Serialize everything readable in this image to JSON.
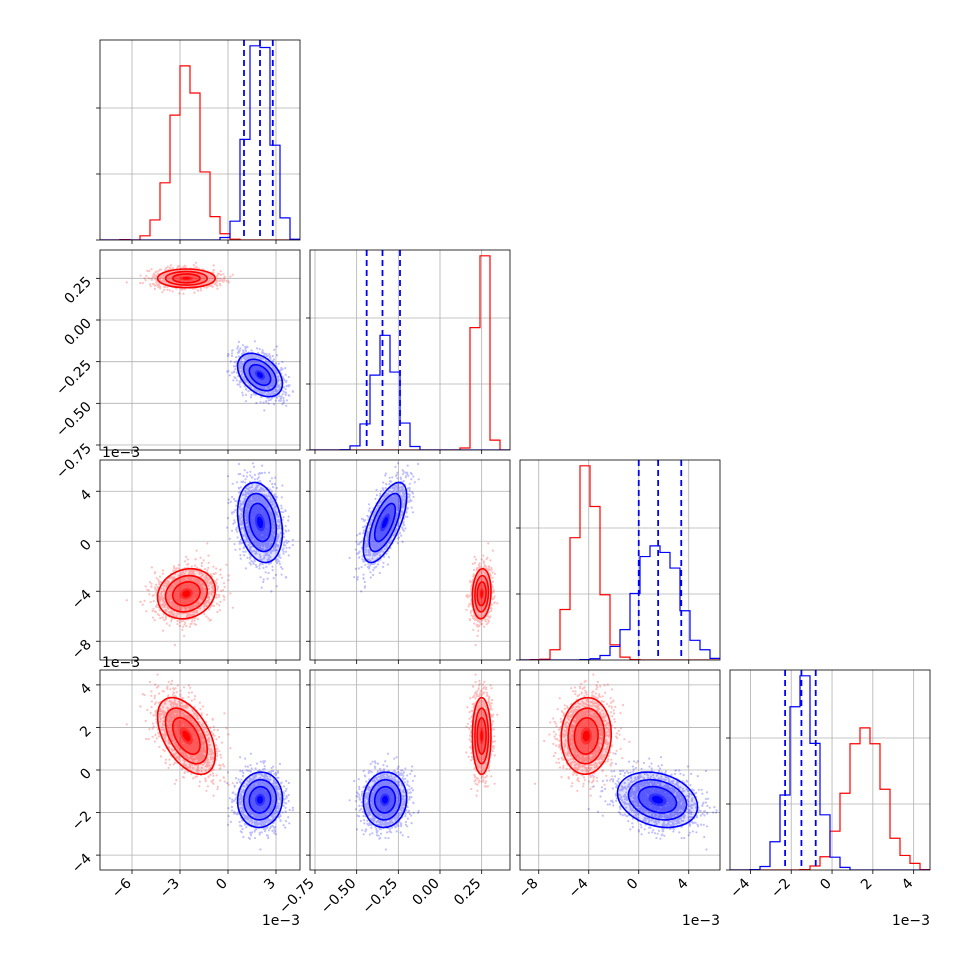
{
  "chart_data": {
    "type": "corner",
    "grid": true,
    "series": [
      {
        "color": "#ff0000",
        "mean": [
          -2.6,
          0.25,
          -4.2,
          1.6
        ],
        "sd": [
          0.9,
          0.028,
          1.0,
          0.9
        ],
        "rho": {
          "0-1": 0.0,
          "0-2": 0.15,
          "0-3": -0.5,
          "1-2": 0.1,
          "1-3": 0.0,
          "2-3": 0.05
        }
      },
      {
        "color": "#0000ff",
        "mean": [
          2.0,
          -0.33,
          1.5,
          -1.4
        ],
        "sd": [
          0.7,
          0.065,
          1.6,
          0.65
        ],
        "rho": {
          "0-1": -0.4,
          "0-2": -0.25,
          "0-3": 0.05,
          "1-2": 0.65,
          "1-3": 0.05,
          "2-3": -0.25
        }
      }
    ],
    "quantiles": [
      {
        "x": [
          1.0,
          2.0,
          2.8
        ]
      },
      {
        "x": [
          -0.44,
          -0.345,
          -0.24
        ]
      },
      {
        "x": [
          0.0,
          1.55,
          3.4
        ]
      },
      {
        "x": [
          -2.3,
          -1.5,
          -0.8
        ]
      }
    ],
    "axes": [
      {
        "range": [
          -8,
          4.5
        ],
        "ticks": [
          -6,
          -3,
          0,
          3
        ],
        "tick_labels": [
          "−6",
          "−3",
          "0",
          "3"
        ],
        "exponent": "1e−3"
      },
      {
        "range": [
          -0.78,
          0.42
        ],
        "ticks": [
          -0.75,
          -0.5,
          -0.25,
          0.0,
          0.25
        ],
        "tick_labels": [
          "−0.75",
          "−0.50",
          "−0.25",
          "0.00",
          "0.25"
        ],
        "exponent": ""
      },
      {
        "range": [
          -9.5,
          6.5
        ],
        "ticks": [
          -8,
          -4,
          0,
          4
        ],
        "tick_labels": [
          "−8",
          "−4",
          "0",
          "4"
        ],
        "exponent": "1e−3"
      },
      {
        "range": [
          -5,
          4.8
        ],
        "ticks": [
          -4,
          -2,
          0,
          2,
          4
        ],
        "tick_labels": [
          "−4",
          "−2",
          "0",
          "2",
          "4"
        ],
        "exponent": "1e−3"
      }
    ],
    "y_axes": [
      null,
      {
        "range": [
          -0.78,
          0.42
        ],
        "ticks": [
          -0.75,
          -0.5,
          -0.25,
          0.0,
          0.25
        ],
        "tick_labels": [
          "−0.75",
          "−0.50",
          "−0.25",
          "0.00",
          "0.25"
        ],
        "exponent": ""
      },
      {
        "range": [
          -9.5,
          6.5
        ],
        "ticks": [
          -8,
          -4,
          0,
          4
        ],
        "tick_labels": [
          "−8",
          "−4",
          "0",
          "4"
        ],
        "exponent": "1e−3"
      },
      {
        "range": [
          -4.7,
          4.7
        ],
        "ticks": [
          -4,
          -2,
          0,
          2,
          4
        ],
        "tick_labels": [
          "−4",
          "−2",
          "0",
          "2",
          "4"
        ],
        "exponent": "1e−3"
      }
    ],
    "exponent_labels": {
      "x": [
        "1e−3",
        "",
        "1e−3",
        "1e−3"
      ],
      "y": [
        "",
        "",
        "1e−3",
        "1e−3"
      ]
    }
  }
}
